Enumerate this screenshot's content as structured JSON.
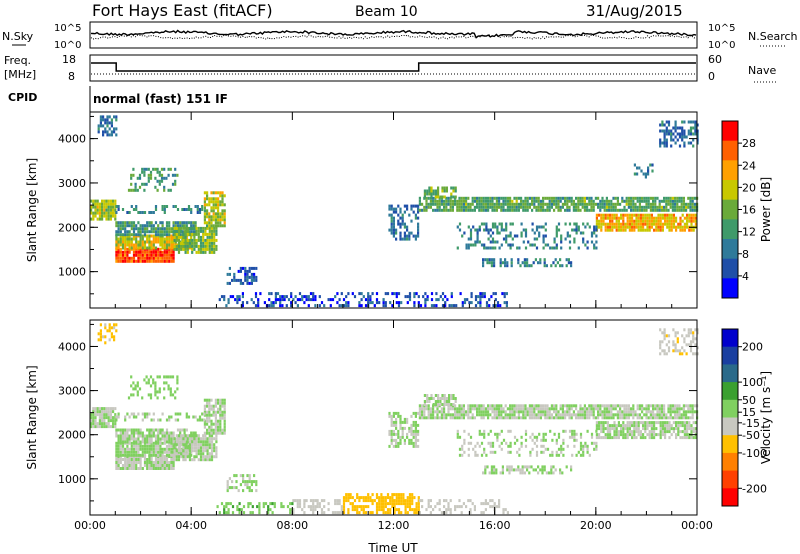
{
  "header": {
    "title": "Fort Hays East (fitACF)",
    "beam": "Beam 10",
    "date": "31/Aug/2015"
  },
  "panels": {
    "nsky": {
      "left_label": "N.Sky",
      "right_label": "N.Search",
      "left_ticks": [
        "10^5",
        "10^0"
      ],
      "right_ticks": [
        "10^5",
        "10^0"
      ]
    },
    "freq": {
      "left_label_1": "Freq.",
      "left_label_2": "[MHz]",
      "left_ticks": [
        "18",
        "8"
      ],
      "right_label": "Nave",
      "right_ticks": [
        "60",
        "0"
      ]
    },
    "cpid": {
      "label": "CPID",
      "mode": "normal (fast) 151 IF"
    }
  },
  "colors": {
    "power_scale": [
      "#0000ff",
      "#1f4fa8",
      "#2f7a9a",
      "#3f9a6a",
      "#6aaa3a",
      "#c8c800",
      "#ffa000",
      "#ff6000",
      "#ff0000"
    ],
    "velocity_scale": [
      "#0000cc",
      "#1a3fa0",
      "#2a6a8a",
      "#3aa030",
      "#80d060",
      "#c8c8c0",
      "#ffc000",
      "#ff8000",
      "#ff4000",
      "#ff0000"
    ]
  },
  "chart_data": [
    {
      "type": "heatmap",
      "name": "power",
      "xlabel": "",
      "ylabel": "Slant Range [km]",
      "x_ticks": [
        "00:00",
        "04:00",
        "08:00",
        "12:00",
        "16:00",
        "20:00",
        "00:00"
      ],
      "ylim": [
        180,
        4600
      ],
      "y_ticks": [
        1000,
        2000,
        3000,
        4000
      ],
      "colorbar": {
        "label": "Power [dB]",
        "ticks": [
          4,
          8,
          12,
          16,
          20,
          24,
          28
        ],
        "range": [
          0,
          32
        ]
      },
      "regions": [
        {
          "t0": 0.0,
          "t1": 1.0,
          "r0": 2150,
          "r1": 2600,
          "v": 18,
          "d": 0.9
        },
        {
          "t0": 0.3,
          "t1": 1.0,
          "r0": 4050,
          "r1": 4500,
          "v": 8,
          "d": 0.5
        },
        {
          "t0": 1.0,
          "t1": 3.3,
          "r0": 1200,
          "r1": 1500,
          "v": 28,
          "d": 0.95
        },
        {
          "t0": 1.0,
          "t1": 4.0,
          "r0": 1500,
          "r1": 1800,
          "v": 20,
          "d": 0.9
        },
        {
          "t0": 1.0,
          "t1": 4.2,
          "r0": 1800,
          "r1": 2100,
          "v": 12,
          "d": 0.8
        },
        {
          "t0": 3.3,
          "t1": 5.0,
          "r0": 1400,
          "r1": 2000,
          "v": 16,
          "d": 0.85
        },
        {
          "t0": 4.5,
          "t1": 5.3,
          "r0": 2000,
          "r1": 2800,
          "v": 18,
          "d": 0.8
        },
        {
          "t0": 1.0,
          "t1": 4.5,
          "r0": 2300,
          "r1": 2500,
          "v": 10,
          "d": 0.35
        },
        {
          "t0": 1.5,
          "t1": 3.5,
          "r0": 2800,
          "r1": 3300,
          "v": 12,
          "d": 0.4
        },
        {
          "t0": 5.4,
          "t1": 6.6,
          "r0": 700,
          "r1": 1100,
          "v": 6,
          "d": 0.5
        },
        {
          "t0": 5.0,
          "t1": 6.0,
          "r0": 200,
          "r1": 450,
          "v": 6,
          "d": 0.4
        },
        {
          "t0": 6.0,
          "t1": 16.5,
          "r0": 200,
          "r1": 500,
          "v": 5,
          "d": 0.35
        },
        {
          "t0": 11.8,
          "t1": 13.0,
          "r0": 1700,
          "r1": 2500,
          "v": 8,
          "d": 0.5
        },
        {
          "t0": 13.0,
          "t1": 24.0,
          "r0": 2350,
          "r1": 2650,
          "v": 14,
          "d": 0.85
        },
        {
          "t0": 13.2,
          "t1": 14.5,
          "r0": 2650,
          "r1": 2900,
          "v": 16,
          "d": 0.7
        },
        {
          "t0": 20.0,
          "t1": 24.0,
          "r0": 1900,
          "r1": 2300,
          "v": 22,
          "d": 0.85
        },
        {
          "t0": 14.5,
          "t1": 20.0,
          "r0": 1500,
          "r1": 2100,
          "v": 10,
          "d": 0.3
        },
        {
          "t0": 15.5,
          "t1": 19.0,
          "r0": 1100,
          "r1": 1300,
          "v": 10,
          "d": 0.5
        },
        {
          "t0": 22.5,
          "t1": 24.0,
          "r0": 3800,
          "r1": 4400,
          "v": 8,
          "d": 0.5
        },
        {
          "t0": 21.5,
          "t1": 22.3,
          "r0": 3100,
          "r1": 3400,
          "v": 8,
          "d": 0.3
        }
      ]
    },
    {
      "type": "heatmap",
      "name": "velocity",
      "xlabel": "Time UT",
      "ylabel": "Slant Range [km]",
      "x_ticks": [
        "00:00",
        "04:00",
        "08:00",
        "12:00",
        "16:00",
        "20:00",
        "00:00"
      ],
      "ylim": [
        180,
        4600
      ],
      "y_ticks": [
        1000,
        2000,
        3000,
        4000
      ],
      "colorbar": {
        "label": "Velocity [m s⁻¹]",
        "ticks": [
          200,
          100,
          50,
          15,
          -15,
          -50,
          -100,
          -200
        ],
        "range": [
          -250,
          250
        ]
      },
      "regions": [
        {
          "t0": 0.0,
          "t1": 1.0,
          "r0": 2150,
          "r1": 2600,
          "v": 0,
          "d": 0.9
        },
        {
          "t0": 0.3,
          "t1": 1.0,
          "r0": 4050,
          "r1": 4500,
          "v": -60,
          "d": 0.4
        },
        {
          "t0": 1.0,
          "t1": 3.3,
          "r0": 1200,
          "r1": 1500,
          "v": -5,
          "d": 0.9
        },
        {
          "t0": 1.0,
          "t1": 4.0,
          "r0": 1500,
          "r1": 1800,
          "v": 5,
          "d": 0.9
        },
        {
          "t0": 1.0,
          "t1": 4.2,
          "r0": 1800,
          "r1": 2100,
          "v": 0,
          "d": 0.8
        },
        {
          "t0": 3.3,
          "t1": 5.0,
          "r0": 1400,
          "r1": 2000,
          "v": 0,
          "d": 0.85
        },
        {
          "t0": 4.5,
          "t1": 5.3,
          "r0": 2000,
          "r1": 2800,
          "v": 0,
          "d": 0.8
        },
        {
          "t0": 1.0,
          "t1": 4.5,
          "r0": 2300,
          "r1": 2500,
          "v": 0,
          "d": 0.35
        },
        {
          "t0": 1.5,
          "t1": 3.5,
          "r0": 2800,
          "r1": 3300,
          "v": 30,
          "d": 0.3
        },
        {
          "t0": 5.4,
          "t1": 6.6,
          "r0": 700,
          "r1": 1100,
          "v": 0,
          "d": 0.5
        },
        {
          "t0": 5.0,
          "t1": 8.0,
          "r0": 200,
          "r1": 450,
          "v": 40,
          "d": 0.45
        },
        {
          "t0": 8.0,
          "t1": 10.0,
          "r0": 200,
          "r1": 480,
          "v": -30,
          "d": 0.45
        },
        {
          "t0": 10.0,
          "t1": 13.0,
          "r0": 200,
          "r1": 650,
          "v": -70,
          "d": 0.65
        },
        {
          "t0": 13.0,
          "t1": 16.5,
          "r0": 200,
          "r1": 500,
          "v": -30,
          "d": 0.35
        },
        {
          "t0": 11.8,
          "t1": 13.0,
          "r0": 1700,
          "r1": 2500,
          "v": 0,
          "d": 0.55
        },
        {
          "t0": 13.0,
          "t1": 24.0,
          "r0": 2350,
          "r1": 2650,
          "v": 0,
          "d": 0.85
        },
        {
          "t0": 13.2,
          "t1": 14.5,
          "r0": 2650,
          "r1": 2900,
          "v": 0,
          "d": 0.7
        },
        {
          "t0": 20.0,
          "t1": 24.0,
          "r0": 1900,
          "r1": 2300,
          "v": 0,
          "d": 0.85
        },
        {
          "t0": 14.5,
          "t1": 20.0,
          "r0": 1500,
          "r1": 2100,
          "v": 0,
          "d": 0.3
        },
        {
          "t0": 15.5,
          "t1": 19.0,
          "r0": 1100,
          "r1": 1300,
          "v": 0,
          "d": 0.5
        },
        {
          "t0": 22.5,
          "t1": 24.0,
          "r0": 3800,
          "r1": 4400,
          "v": -40,
          "d": 0.45
        }
      ]
    }
  ]
}
